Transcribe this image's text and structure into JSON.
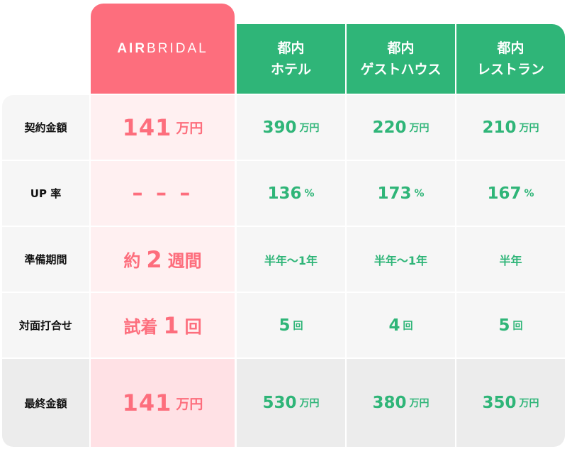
{
  "header": {
    "brand_bold": "AIR",
    "brand_thin": "BRIDAL",
    "competitors": [
      {
        "line1": "都内",
        "line2": "ホテル"
      },
      {
        "line1": "都内",
        "line2": "ゲストハウス"
      },
      {
        "line1": "都内",
        "line2": "レストラン"
      }
    ]
  },
  "rows": [
    {
      "label": "契約金額",
      "air": {
        "value": "141",
        "unit": "万円"
      },
      "others": [
        {
          "value": "390",
          "unit": "万円"
        },
        {
          "value": "220",
          "unit": "万円"
        },
        {
          "value": "210",
          "unit": "万円"
        }
      ]
    },
    {
      "label": "UP 率",
      "air": {
        "value": "– – –"
      },
      "others": [
        {
          "value": "136",
          "unit": "%"
        },
        {
          "value": "173",
          "unit": "%"
        },
        {
          "value": "167",
          "unit": "%"
        }
      ]
    },
    {
      "label": "準備期間",
      "air": {
        "prefix": "約",
        "value": "2",
        "suffix": "週間"
      },
      "others": [
        {
          "value": "半年～1年"
        },
        {
          "value": "半年～1年"
        },
        {
          "value": "半年"
        }
      ]
    },
    {
      "label": "対面打合せ",
      "air": {
        "prefix": "試着",
        "value": "1",
        "suffix": "回"
      },
      "others": [
        {
          "value": "5",
          "unit": "回"
        },
        {
          "value": "4",
          "unit": "回"
        },
        {
          "value": "5",
          "unit": "回"
        }
      ]
    },
    {
      "label": "最終金額",
      "air": {
        "value": "141",
        "unit": "万円"
      },
      "others": [
        {
          "value": "530",
          "unit": "万円"
        },
        {
          "value": "380",
          "unit": "万円"
        },
        {
          "value": "350",
          "unit": "万円"
        }
      ]
    }
  ],
  "colors": {
    "brand_pink": "#fd6e7d",
    "brand_green": "#2fb578",
    "row_bg": "#f6f6f6",
    "air_row_bg": "#fff0f1"
  }
}
